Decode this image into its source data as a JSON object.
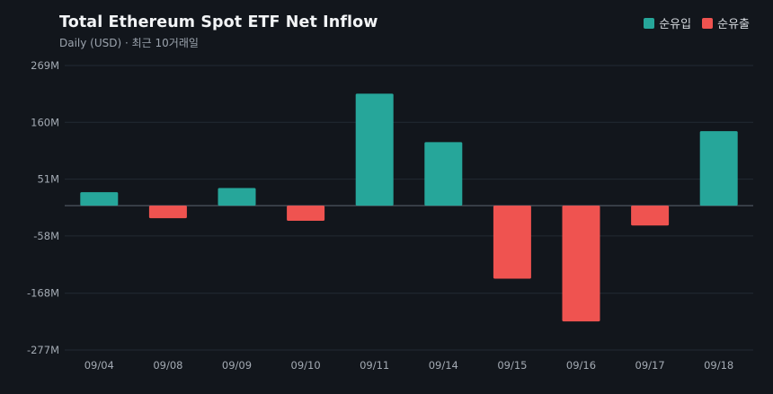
{
  "chart_data": {
    "type": "bar",
    "title": "Total Ethereum Spot ETF Net Inflow",
    "subtitle": "Daily (USD) · 최근 10거래일",
    "categories": [
      "09/04",
      "09/08",
      "09/09",
      "09/10",
      "09/11",
      "09/14",
      "09/15",
      "09/16",
      "09/17",
      "09/18"
    ],
    "values": [
      26,
      -24,
      34,
      -29,
      215,
      122,
      -140,
      -222,
      -38,
      143
    ],
    "unit": "M",
    "ylim": [
      -277,
      269
    ],
    "yticks": [
      269,
      160,
      51,
      -58,
      -168,
      -277
    ],
    "ytick_labels": [
      "269M",
      "160M",
      "51M",
      "-58M",
      "-168M",
      "-277M"
    ],
    "legend": [
      {
        "label": "순유입",
        "color": "#26a69a"
      },
      {
        "label": "순유출",
        "color": "#ef5350"
      }
    ],
    "legend_position": "top-right",
    "grid": true,
    "colors": {
      "positive": "#26a69a",
      "negative": "#ef5350",
      "background": "#12161c",
      "grid": "#232a33",
      "zero_line": "#5d6570"
    }
  }
}
